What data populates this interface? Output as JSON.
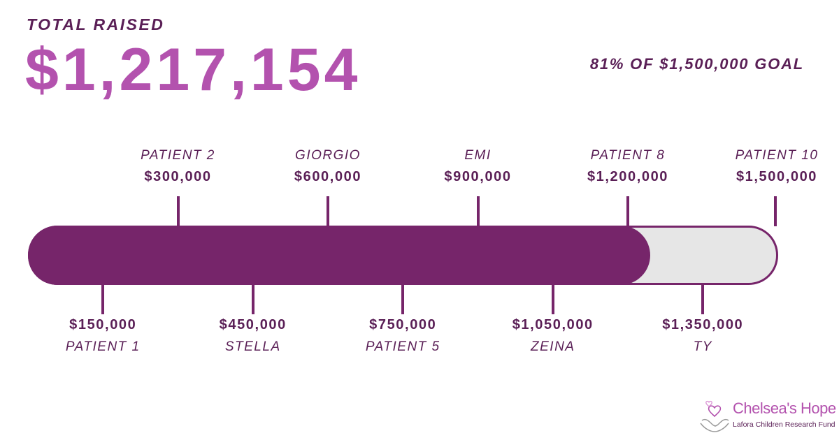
{
  "header": {
    "total_label": "TOTAL RAISED",
    "total_amount": "$1,217,154",
    "goal_text": "81% OF $1,500,000 GOAL"
  },
  "progress": {
    "raised": 1217154,
    "goal": 1500000,
    "fraction": 0.81
  },
  "milestones_top": [
    {
      "name": "PATIENT 2",
      "amount": "$300,000",
      "value": 300000
    },
    {
      "name": "GIORGIO",
      "amount": "$600,000",
      "value": 600000
    },
    {
      "name": "EMI",
      "amount": "$900,000",
      "value": 900000
    },
    {
      "name": "PATIENT 8",
      "amount": "$1,200,000",
      "value": 1200000
    },
    {
      "name": "PATIENT 10",
      "amount": "$1,500,000",
      "value": 1500000
    }
  ],
  "milestones_bottom": [
    {
      "name": "PATIENT 1",
      "amount": "$150,000",
      "value": 150000
    },
    {
      "name": "STELLA",
      "amount": "$450,000",
      "value": 450000
    },
    {
      "name": "PATIENT 5",
      "amount": "$750,000",
      "value": 750000
    },
    {
      "name": "ZEINA",
      "amount": "$1,050,000",
      "value": 1050000
    },
    {
      "name": "TY",
      "amount": "$1,350,000",
      "value": 1350000
    }
  ],
  "logo": {
    "title": "Chelsea's Hope",
    "subtitle": "Lafora Children Research Fund",
    "icon": "hands-heart-icon"
  },
  "colors": {
    "bar_fill": "#76256a",
    "bar_track": "#e6e6e6",
    "amount_accent": "#b352ae",
    "text_dark": "#5a1f56"
  }
}
